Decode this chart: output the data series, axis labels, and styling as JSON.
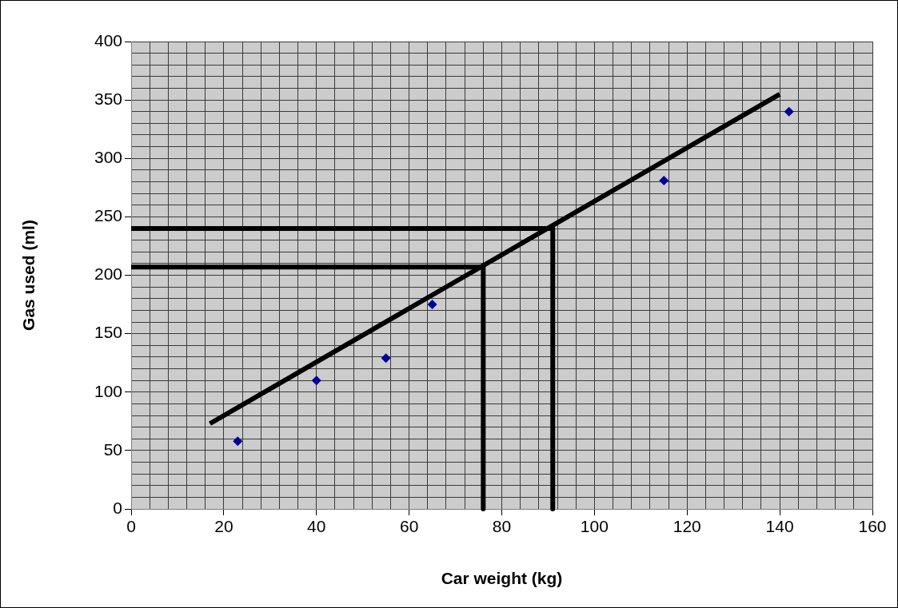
{
  "chart_data": {
    "type": "scatter",
    "xlabel": "Car weight (kg)",
    "ylabel": "Gas used (ml)",
    "xlim": [
      0,
      160
    ],
    "ylim": [
      0,
      400
    ],
    "xticks": [
      0,
      {
        "value": 4,
        "label": null
      },
      {
        "value": 8,
        "label": null
      },
      {
        "value": 12,
        "label": null
      },
      {
        "value": 16,
        "label": null
      },
      20,
      {
        "value": 24,
        "label": null
      },
      {
        "value": 28,
        "label": null
      },
      {
        "value": 32,
        "label": null
      },
      {
        "value": 36,
        "label": null
      },
      40,
      {
        "value": 44,
        "label": null
      },
      {
        "value": 48,
        "label": null
      },
      {
        "value": 52,
        "label": null
      },
      {
        "value": 56,
        "label": null
      },
      60,
      {
        "value": 64,
        "label": null
      },
      {
        "value": 68,
        "label": null
      },
      {
        "value": 72,
        "label": null
      },
      {
        "value": 76,
        "label": null
      },
      80,
      {
        "value": 84,
        "label": null
      },
      {
        "value": 88,
        "label": null
      },
      {
        "value": 92,
        "label": null
      },
      {
        "value": 96,
        "label": null
      },
      100,
      {
        "value": 104,
        "label": null
      },
      {
        "value": 108,
        "label": null
      },
      {
        "value": 112,
        "label": null
      },
      {
        "value": 116,
        "label": null
      },
      120,
      {
        "value": 124,
        "label": null
      },
      {
        "value": 128,
        "label": null
      },
      {
        "value": 132,
        "label": null
      },
      {
        "value": 136,
        "label": null
      },
      140,
      {
        "value": 144,
        "label": null
      },
      {
        "value": 148,
        "label": null
      },
      {
        "value": 152,
        "label": null
      },
      {
        "value": 156,
        "label": null
      },
      160
    ],
    "yticks": [
      0,
      {
        "value": 10,
        "label": null
      },
      {
        "value": 20,
        "label": null
      },
      {
        "value": 30,
        "label": null
      },
      {
        "value": 40,
        "label": null
      },
      50,
      {
        "value": 60,
        "label": null
      },
      {
        "value": 70,
        "label": null
      },
      {
        "value": 80,
        "label": null
      },
      {
        "value": 90,
        "label": null
      },
      100,
      {
        "value": 110,
        "label": null
      },
      {
        "value": 120,
        "label": null
      },
      {
        "value": 130,
        "label": null
      },
      {
        "value": 140,
        "label": null
      },
      150,
      {
        "value": 160,
        "label": null
      },
      {
        "value": 170,
        "label": null
      },
      {
        "value": 180,
        "label": null
      },
      {
        "value": 190,
        "label": null
      },
      200,
      {
        "value": 210,
        "label": null
      },
      {
        "value": 220,
        "label": null
      },
      {
        "value": 230,
        "label": null
      },
      {
        "value": 240,
        "label": null
      },
      250,
      {
        "value": 260,
        "label": null
      },
      {
        "value": 270,
        "label": null
      },
      {
        "value": 280,
        "label": null
      },
      {
        "value": 290,
        "label": null
      },
      300,
      {
        "value": 310,
        "label": null
      },
      {
        "value": 320,
        "label": null
      },
      {
        "value": 330,
        "label": null
      },
      {
        "value": 340,
        "label": null
      },
      350,
      {
        "value": 360,
        "label": null
      },
      {
        "value": 370,
        "label": null
      },
      {
        "value": 380,
        "label": null
      },
      {
        "value": 390,
        "label": null
      },
      400
    ],
    "grid": true,
    "series": [
      {
        "marker": "diamond",
        "color": "#000099",
        "x": [
          23,
          40,
          55,
          65,
          115,
          142
        ],
        "values": [
          58,
          110,
          129,
          175,
          281,
          340
        ]
      },
      {
        "type": "line",
        "marker": "none",
        "color": "#000000",
        "x": [
          17,
          140
        ],
        "values": [
          73,
          355
        ]
      },
      {
        "type": "line",
        "marker": "none",
        "color": "#000000",
        "x": [
          0,
          91,
          91
        ],
        "values": [
          240,
          240,
          0
        ]
      },
      {
        "type": "line",
        "marker": "none",
        "color": "#000000",
        "x": [
          0,
          76,
          76
        ],
        "values": [
          207,
          207,
          0
        ]
      }
    ]
  }
}
